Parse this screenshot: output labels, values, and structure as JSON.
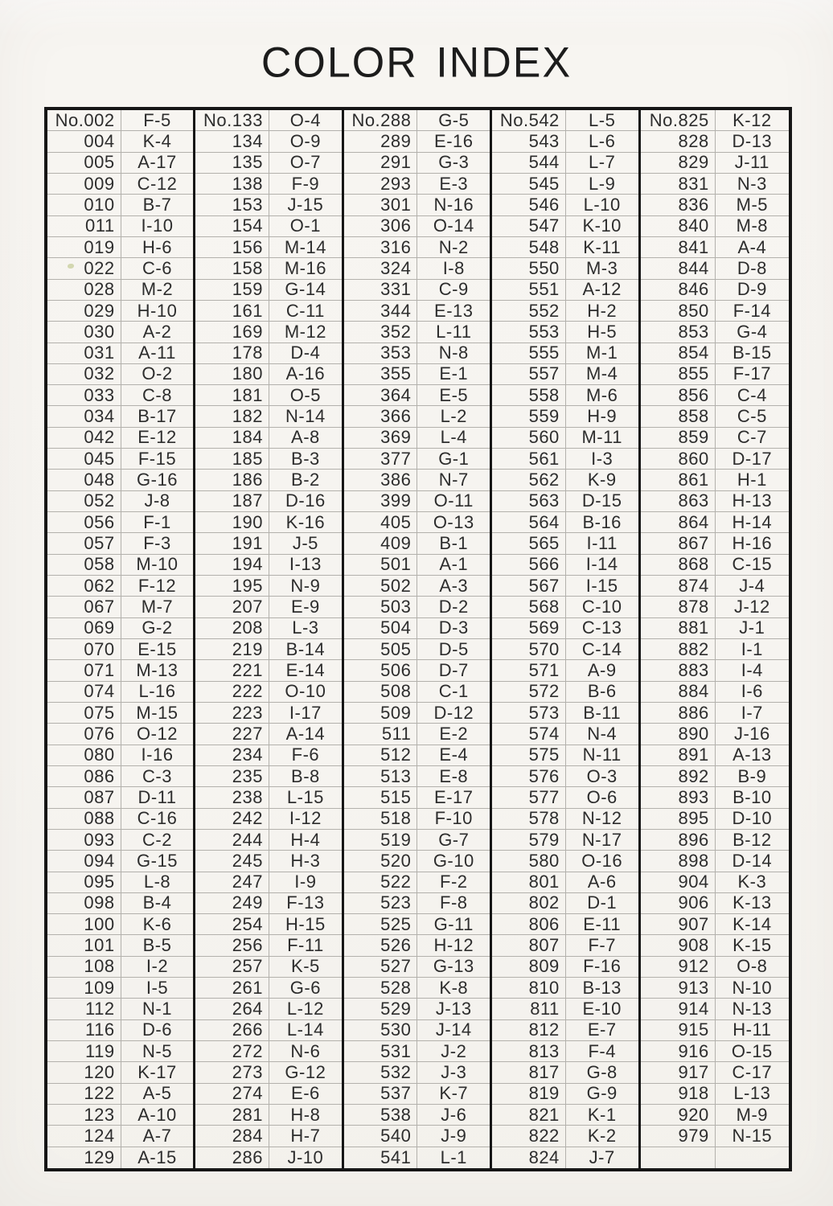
{
  "page": {
    "title": "COLOR INDEX"
  },
  "colors": {
    "paper": "#f7f5f1",
    "ink": "#2d2d2d",
    "border_heavy": "#161616",
    "border_light": "#b3b1ac"
  },
  "table": {
    "columns": [
      {
        "rows": [
          [
            "No.002",
            "F-5"
          ],
          [
            "004",
            "K-4"
          ],
          [
            "005",
            "A-17"
          ],
          [
            "009",
            "C-12"
          ],
          [
            "010",
            "B-7"
          ],
          [
            "011",
            "I-10"
          ],
          [
            "019",
            "H-6"
          ],
          [
            "022",
            "C-6"
          ],
          [
            "028",
            "M-2"
          ],
          [
            "029",
            "H-10"
          ],
          [
            "030",
            "A-2"
          ],
          [
            "031",
            "A-11"
          ],
          [
            "032",
            "O-2"
          ],
          [
            "033",
            "C-8"
          ],
          [
            "034",
            "B-17"
          ],
          [
            "042",
            "E-12"
          ],
          [
            "045",
            "F-15"
          ],
          [
            "048",
            "G-16"
          ],
          [
            "052",
            "J-8"
          ],
          [
            "056",
            "F-1"
          ],
          [
            "057",
            "F-3"
          ],
          [
            "058",
            "M-10"
          ],
          [
            "062",
            "F-12"
          ],
          [
            "067",
            "M-7"
          ],
          [
            "069",
            "G-2"
          ],
          [
            "070",
            "E-15"
          ],
          [
            "071",
            "M-13"
          ],
          [
            "074",
            "L-16"
          ],
          [
            "075",
            "M-15"
          ],
          [
            "076",
            "O-12"
          ],
          [
            "080",
            "I-16"
          ],
          [
            "086",
            "C-3"
          ],
          [
            "087",
            "D-11"
          ],
          [
            "088",
            "C-16"
          ],
          [
            "093",
            "C-2"
          ],
          [
            "094",
            "G-15"
          ],
          [
            "095",
            "L-8"
          ],
          [
            "098",
            "B-4"
          ],
          [
            "100",
            "K-6"
          ],
          [
            "101",
            "B-5"
          ],
          [
            "108",
            "I-2"
          ],
          [
            "109",
            "I-5"
          ],
          [
            "112",
            "N-1"
          ],
          [
            "116",
            "D-6"
          ],
          [
            "119",
            "N-5"
          ],
          [
            "120",
            "K-17"
          ],
          [
            "122",
            "A-5"
          ],
          [
            "123",
            "A-10"
          ],
          [
            "124",
            "A-7"
          ],
          [
            "129",
            "A-15"
          ]
        ]
      },
      {
        "rows": [
          [
            "No.133",
            "O-4"
          ],
          [
            "134",
            "O-9"
          ],
          [
            "135",
            "O-7"
          ],
          [
            "138",
            "F-9"
          ],
          [
            "153",
            "J-15"
          ],
          [
            "154",
            "O-1"
          ],
          [
            "156",
            "M-14"
          ],
          [
            "158",
            "M-16"
          ],
          [
            "159",
            "G-14"
          ],
          [
            "161",
            "C-11"
          ],
          [
            "169",
            "M-12"
          ],
          [
            "178",
            "D-4"
          ],
          [
            "180",
            "A-16"
          ],
          [
            "181",
            "O-5"
          ],
          [
            "182",
            "N-14"
          ],
          [
            "184",
            "A-8"
          ],
          [
            "185",
            "B-3"
          ],
          [
            "186",
            "B-2"
          ],
          [
            "187",
            "D-16"
          ],
          [
            "190",
            "K-16"
          ],
          [
            "191",
            "J-5"
          ],
          [
            "194",
            "I-13"
          ],
          [
            "195",
            "N-9"
          ],
          [
            "207",
            "E-9"
          ],
          [
            "208",
            "L-3"
          ],
          [
            "219",
            "B-14"
          ],
          [
            "221",
            "E-14"
          ],
          [
            "222",
            "O-10"
          ],
          [
            "223",
            "I-17"
          ],
          [
            "227",
            "A-14"
          ],
          [
            "234",
            "F-6"
          ],
          [
            "235",
            "B-8"
          ],
          [
            "238",
            "L-15"
          ],
          [
            "242",
            "I-12"
          ],
          [
            "244",
            "H-4"
          ],
          [
            "245",
            "H-3"
          ],
          [
            "247",
            "I-9"
          ],
          [
            "249",
            "F-13"
          ],
          [
            "254",
            "H-15"
          ],
          [
            "256",
            "F-11"
          ],
          [
            "257",
            "K-5"
          ],
          [
            "261",
            "G-6"
          ],
          [
            "264",
            "L-12"
          ],
          [
            "266",
            "L-14"
          ],
          [
            "272",
            "N-6"
          ],
          [
            "273",
            "G-12"
          ],
          [
            "274",
            "E-6"
          ],
          [
            "281",
            "H-8"
          ],
          [
            "284",
            "H-7"
          ],
          [
            "286",
            "J-10"
          ]
        ]
      },
      {
        "rows": [
          [
            "No.288",
            "G-5"
          ],
          [
            "289",
            "E-16"
          ],
          [
            "291",
            "G-3"
          ],
          [
            "293",
            "E-3"
          ],
          [
            "301",
            "N-16"
          ],
          [
            "306",
            "O-14"
          ],
          [
            "316",
            "N-2"
          ],
          [
            "324",
            "I-8"
          ],
          [
            "331",
            "C-9"
          ],
          [
            "344",
            "E-13"
          ],
          [
            "352",
            "L-11"
          ],
          [
            "353",
            "N-8"
          ],
          [
            "355",
            "E-1"
          ],
          [
            "364",
            "E-5"
          ],
          [
            "366",
            "L-2"
          ],
          [
            "369",
            "L-4"
          ],
          [
            "377",
            "G-1"
          ],
          [
            "386",
            "N-7"
          ],
          [
            "399",
            "O-11"
          ],
          [
            "405",
            "O-13"
          ],
          [
            "409",
            "B-1"
          ],
          [
            "501",
            "A-1"
          ],
          [
            "502",
            "A-3"
          ],
          [
            "503",
            "D-2"
          ],
          [
            "504",
            "D-3"
          ],
          [
            "505",
            "D-5"
          ],
          [
            "506",
            "D-7"
          ],
          [
            "508",
            "C-1"
          ],
          [
            "509",
            "D-12"
          ],
          [
            "511",
            "E-2"
          ],
          [
            "512",
            "E-4"
          ],
          [
            "513",
            "E-8"
          ],
          [
            "515",
            "E-17"
          ],
          [
            "518",
            "F-10"
          ],
          [
            "519",
            "G-7"
          ],
          [
            "520",
            "G-10"
          ],
          [
            "522",
            "F-2"
          ],
          [
            "523",
            "F-8"
          ],
          [
            "525",
            "G-11"
          ],
          [
            "526",
            "H-12"
          ],
          [
            "527",
            "G-13"
          ],
          [
            "528",
            "K-8"
          ],
          [
            "529",
            "J-13"
          ],
          [
            "530",
            "J-14"
          ],
          [
            "531",
            "J-2"
          ],
          [
            "532",
            "J-3"
          ],
          [
            "537",
            "K-7"
          ],
          [
            "538",
            "J-6"
          ],
          [
            "540",
            "J-9"
          ],
          [
            "541",
            "L-1"
          ]
        ]
      },
      {
        "rows": [
          [
            "No.542",
            "L-5"
          ],
          [
            "543",
            "L-6"
          ],
          [
            "544",
            "L-7"
          ],
          [
            "545",
            "L-9"
          ],
          [
            "546",
            "L-10"
          ],
          [
            "547",
            "K-10"
          ],
          [
            "548",
            "K-11"
          ],
          [
            "550",
            "M-3"
          ],
          [
            "551",
            "A-12"
          ],
          [
            "552",
            "H-2"
          ],
          [
            "553",
            "H-5"
          ],
          [
            "555",
            "M-1"
          ],
          [
            "557",
            "M-4"
          ],
          [
            "558",
            "M-6"
          ],
          [
            "559",
            "H-9"
          ],
          [
            "560",
            "M-11"
          ],
          [
            "561",
            "I-3"
          ],
          [
            "562",
            "K-9"
          ],
          [
            "563",
            "D-15"
          ],
          [
            "564",
            "B-16"
          ],
          [
            "565",
            "I-11"
          ],
          [
            "566",
            "I-14"
          ],
          [
            "567",
            "I-15"
          ],
          [
            "568",
            "C-10"
          ],
          [
            "569",
            "C-13"
          ],
          [
            "570",
            "C-14"
          ],
          [
            "571",
            "A-9"
          ],
          [
            "572",
            "B-6"
          ],
          [
            "573",
            "B-11"
          ],
          [
            "574",
            "N-4"
          ],
          [
            "575",
            "N-11"
          ],
          [
            "576",
            "O-3"
          ],
          [
            "577",
            "O-6"
          ],
          [
            "578",
            "N-12"
          ],
          [
            "579",
            "N-17"
          ],
          [
            "580",
            "O-16"
          ],
          [
            "801",
            "A-6"
          ],
          [
            "802",
            "D-1"
          ],
          [
            "806",
            "E-11"
          ],
          [
            "807",
            "F-7"
          ],
          [
            "809",
            "F-16"
          ],
          [
            "810",
            "B-13"
          ],
          [
            "811",
            "E-10"
          ],
          [
            "812",
            "E-7"
          ],
          [
            "813",
            "F-4"
          ],
          [
            "817",
            "G-8"
          ],
          [
            "819",
            "G-9"
          ],
          [
            "821",
            "K-1"
          ],
          [
            "822",
            "K-2"
          ],
          [
            "824",
            "J-7"
          ]
        ]
      },
      {
        "rows": [
          [
            "No.825",
            "K-12"
          ],
          [
            "828",
            "D-13"
          ],
          [
            "829",
            "J-11"
          ],
          [
            "831",
            "N-3"
          ],
          [
            "836",
            "M-5"
          ],
          [
            "840",
            "M-8"
          ],
          [
            "841",
            "A-4"
          ],
          [
            "844",
            "D-8"
          ],
          [
            "846",
            "D-9"
          ],
          [
            "850",
            "F-14"
          ],
          [
            "853",
            "G-4"
          ],
          [
            "854",
            "B-15"
          ],
          [
            "855",
            "F-17"
          ],
          [
            "856",
            "C-4"
          ],
          [
            "858",
            "C-5"
          ],
          [
            "859",
            "C-7"
          ],
          [
            "860",
            "D-17"
          ],
          [
            "861",
            "H-1"
          ],
          [
            "863",
            "H-13"
          ],
          [
            "864",
            "H-14"
          ],
          [
            "867",
            "H-16"
          ],
          [
            "868",
            "C-15"
          ],
          [
            "874",
            "J-4"
          ],
          [
            "878",
            "J-12"
          ],
          [
            "881",
            "J-1"
          ],
          [
            "882",
            "I-1"
          ],
          [
            "883",
            "I-4"
          ],
          [
            "884",
            "I-6"
          ],
          [
            "886",
            "I-7"
          ],
          [
            "890",
            "J-16"
          ],
          [
            "891",
            "A-13"
          ],
          [
            "892",
            "B-9"
          ],
          [
            "893",
            "B-10"
          ],
          [
            "895",
            "D-10"
          ],
          [
            "896",
            "B-12"
          ],
          [
            "898",
            "D-14"
          ],
          [
            "904",
            "K-3"
          ],
          [
            "906",
            "K-13"
          ],
          [
            "907",
            "K-14"
          ],
          [
            "908",
            "K-15"
          ],
          [
            "912",
            "O-8"
          ],
          [
            "913",
            "N-10"
          ],
          [
            "914",
            "N-13"
          ],
          [
            "915",
            "H-11"
          ],
          [
            "916",
            "O-15"
          ],
          [
            "917",
            "C-17"
          ],
          [
            "918",
            "L-13"
          ],
          [
            "920",
            "M-9"
          ],
          [
            "979",
            "N-15"
          ],
          [
            "",
            ""
          ]
        ]
      }
    ]
  }
}
